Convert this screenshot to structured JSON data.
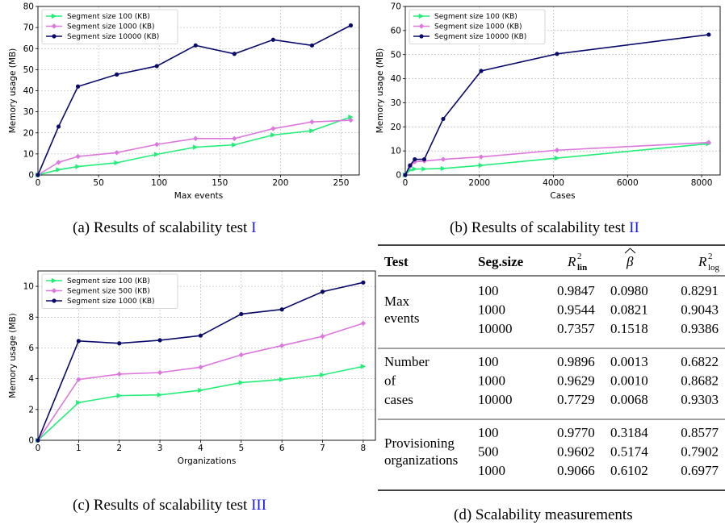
{
  "charts": {
    "a": {
      "caption": "(a) Results of scalability test",
      "caption_ref": "I",
      "chart_data": {
        "type": "line",
        "xlabel": "Max events",
        "ylabel": "Memory usage (MB)",
        "xlim": [
          0,
          265
        ],
        "ylim": [
          0,
          80
        ],
        "xticks": [
          0,
          50,
          100,
          150,
          200,
          250
        ],
        "yticks": [
          0,
          10,
          20,
          30,
          40,
          50,
          60,
          70,
          80
        ],
        "grid": true,
        "legend": "top-left",
        "series": [
          {
            "name": "Segment size 100 (KB)",
            "color": "#22ee77",
            "marker": "triangle",
            "x": [
              0,
              17,
              33,
              65,
              98,
              130,
              162,
              194,
              226,
              258
            ],
            "y": [
              0,
              2.5,
              4,
              5.8,
              9.8,
              13.2,
              14.3,
              19,
              21,
              27.5
            ]
          },
          {
            "name": "Segment size 1000 (KB)",
            "color": "#dd77dd",
            "marker": "diamond",
            "x": [
              0,
              17,
              33,
              65,
              98,
              130,
              162,
              194,
              226,
              258
            ],
            "y": [
              0,
              6,
              8.8,
              10.6,
              14.5,
              17.3,
              17.3,
              22,
              25.2,
              26
            ]
          },
          {
            "name": "Segment size 10000 (KB)",
            "color": "#0a0a6b",
            "marker": "circle",
            "x": [
              0,
              17,
              33,
              65,
              98,
              130,
              162,
              194,
              226,
              258
            ],
            "y": [
              0,
              23,
              42,
              47.7,
              51.7,
              61.5,
              57.5,
              64.2,
              61.5,
              71
            ]
          }
        ]
      }
    },
    "b": {
      "caption": "(b) Results of scalability test",
      "caption_ref": "II",
      "chart_data": {
        "type": "line",
        "xlabel": "Cases",
        "ylabel": "Memory usage (MB)",
        "xlim": [
          0,
          8500
        ],
        "ylim": [
          0,
          70
        ],
        "xticks": [
          0,
          2000,
          4000,
          6000,
          8000
        ],
        "yticks": [
          0,
          10,
          20,
          30,
          40,
          50,
          60,
          70
        ],
        "grid": true,
        "legend": "top-left",
        "series": [
          {
            "name": "Segment size 100 (KB)",
            "color": "#22ee77",
            "marker": "triangle",
            "x": [
              0,
              128,
              256,
              512,
              1024,
              2048,
              4096,
              8192
            ],
            "y": [
              0,
              2,
              2.5,
              2.5,
              2.7,
              4,
              7,
              13
            ]
          },
          {
            "name": "Segment size 1000 (KB)",
            "color": "#dd77dd",
            "marker": "diamond",
            "x": [
              0,
              128,
              256,
              512,
              1024,
              2048,
              4096,
              8192
            ],
            "y": [
              0,
              3.5,
              5.5,
              5.8,
              6.5,
              7.5,
              10.3,
              13.5
            ]
          },
          {
            "name": "Segment size 10000 (KB)",
            "color": "#0a0a6b",
            "marker": "circle",
            "x": [
              0,
              128,
              256,
              512,
              1024,
              2048,
              4096,
              8192
            ],
            "y": [
              0,
              4,
              6.5,
              6.5,
              23.3,
              43.2,
              50.3,
              58.3
            ]
          }
        ]
      }
    },
    "c": {
      "caption": "(c) Results of scalability test",
      "caption_ref": "III",
      "chart_data": {
        "type": "line",
        "xlabel": "Organizations",
        "ylabel": "Memory usage (MB)",
        "xlim": [
          0,
          8.3
        ],
        "ylim": [
          0,
          11
        ],
        "xticks": [
          0,
          1,
          2,
          3,
          4,
          5,
          6,
          7,
          8
        ],
        "yticks": [
          0,
          2,
          4,
          6,
          8,
          10
        ],
        "grid": true,
        "legend": "top-left",
        "series": [
          {
            "name": "Segment size 100 (KB)",
            "color": "#22ee77",
            "marker": "triangle",
            "x": [
              0,
              1,
              2,
              3,
              4,
              5,
              6,
              7,
              8
            ],
            "y": [
              0,
              2.45,
              2.9,
              2.95,
              3.25,
              3.75,
              3.95,
              4.25,
              4.8
            ]
          },
          {
            "name": "Segment size 500 (KB)",
            "color": "#dd77dd",
            "marker": "diamond",
            "x": [
              0,
              1,
              2,
              3,
              4,
              5,
              6,
              7,
              8
            ],
            "y": [
              0,
              3.95,
              4.3,
              4.4,
              4.75,
              5.55,
              6.15,
              6.75,
              7.6
            ]
          },
          {
            "name": "Segment size 1000 (KB)",
            "color": "#0a0a6b",
            "marker": "circle",
            "x": [
              0,
              1,
              2,
              3,
              4,
              5,
              6,
              7,
              8
            ],
            "y": [
              0,
              6.45,
              6.3,
              6.5,
              6.8,
              8.2,
              8.5,
              9.65,
              10.25
            ]
          }
        ]
      }
    }
  },
  "table": {
    "caption": "(d) Scalability measurements",
    "header": {
      "test": "Test",
      "seg": "Seg.size",
      "rlin_base": "R",
      "rlin_sup": "2",
      "rlin_sub": "lin",
      "beta": "β",
      "rlog_base": "R",
      "rlog_sup": "2",
      "rlog_sub": "log"
    },
    "groups": [
      {
        "label": [
          "Max",
          "events"
        ],
        "rows": [
          {
            "seg": "100",
            "rlin": "0.9847",
            "beta": "0.0980",
            "rlog": "0.8291"
          },
          {
            "seg": "1000",
            "rlin": "0.9544",
            "beta": "0.0821",
            "rlog": "0.9043"
          },
          {
            "seg": "10000",
            "rlin": "0.7357",
            "beta": "0.1518",
            "rlog": "0.9386"
          }
        ]
      },
      {
        "label": [
          "Number",
          "of",
          "cases"
        ],
        "rows": [
          {
            "seg": "100",
            "rlin": "0.9896",
            "beta": "0.0013",
            "rlog": "0.6822"
          },
          {
            "seg": "1000",
            "rlin": "0.9629",
            "beta": "0.0010",
            "rlog": "0.8682"
          },
          {
            "seg": "10000",
            "rlin": "0.7729",
            "beta": "0.0068",
            "rlog": "0.9303"
          }
        ]
      },
      {
        "label": [
          "Provisioning",
          "organizations"
        ],
        "rows": [
          {
            "seg": "100",
            "rlin": "0.9770",
            "beta": "0.3184",
            "rlog": "0.8577"
          },
          {
            "seg": "500",
            "rlin": "0.9602",
            "beta": "0.5174",
            "rlog": "0.7902"
          },
          {
            "seg": "1000",
            "rlin": "0.9066",
            "beta": "0.6102",
            "rlog": "0.6977"
          }
        ]
      }
    ]
  }
}
